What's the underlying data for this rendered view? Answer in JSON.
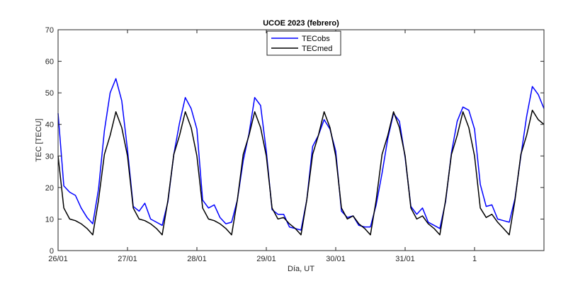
{
  "chart_data": {
    "type": "line",
    "title": "UCOE 2023 (febrero)",
    "xlabel": "Día, UT",
    "ylabel": "TEC [TECU]",
    "xlim": [
      0,
      7
    ],
    "ylim": [
      0,
      70
    ],
    "x_ticks": [
      {
        "value": 0,
        "label": "26/01"
      },
      {
        "value": 1,
        "label": "27/01"
      },
      {
        "value": 2,
        "label": "28/01"
      },
      {
        "value": 3,
        "label": "29/01"
      },
      {
        "value": 4,
        "label": "30/01"
      },
      {
        "value": 5,
        "label": "31/01"
      },
      {
        "value": 6,
        "label": "1"
      }
    ],
    "y_ticks": [
      0,
      10,
      20,
      30,
      40,
      50,
      60,
      70
    ],
    "grid": false,
    "legend": {
      "placement": "top-center"
    },
    "colors": {
      "TECobs": "#0000ff",
      "TECmed": "#000000"
    },
    "series": [
      {
        "name": "TECobs",
        "x": [
          0.0,
          0.083,
          0.167,
          0.25,
          0.333,
          0.417,
          0.5,
          0.583,
          0.667,
          0.75,
          0.833,
          0.917,
          1.0,
          1.083,
          1.167,
          1.25,
          1.333,
          1.417,
          1.5,
          1.583,
          1.667,
          1.75,
          1.833,
          1.917,
          2.0,
          2.083,
          2.167,
          2.25,
          2.333,
          2.417,
          2.5,
          2.583,
          2.667,
          2.75,
          2.833,
          2.917,
          3.0,
          3.083,
          3.167,
          3.25,
          3.333,
          3.417,
          3.5,
          3.583,
          3.667,
          3.75,
          3.833,
          3.917,
          4.0,
          4.083,
          4.167,
          4.25,
          4.333,
          4.417,
          4.5,
          4.583,
          4.667,
          4.75,
          4.833,
          4.917,
          5.0,
          5.083,
          5.167,
          5.25,
          5.333,
          5.417,
          5.5,
          5.583,
          5.667,
          5.75,
          5.833,
          5.917,
          6.0,
          6.083,
          6.167,
          6.25,
          6.333,
          6.417,
          6.5,
          6.583,
          6.667,
          6.75,
          6.833,
          6.917,
          7.0
        ],
        "values": [
          43.5,
          20.5,
          18.5,
          17.5,
          13.5,
          10.5,
          8.5,
          19.5,
          38.0,
          50.0,
          54.5,
          47.5,
          32.0,
          14.0,
          12.5,
          15.0,
          10.0,
          9.0,
          8.0,
          15.5,
          30.5,
          40.5,
          48.5,
          45.0,
          38.5,
          16.0,
          13.5,
          14.5,
          10.5,
          8.5,
          9.0,
          16.0,
          28.5,
          37.0,
          48.5,
          46.0,
          31.5,
          13.0,
          11.5,
          11.5,
          7.5,
          7.0,
          6.5,
          16.0,
          33.0,
          36.5,
          41.5,
          38.5,
          31.5,
          12.5,
          10.5,
          11.0,
          8.0,
          7.5,
          7.5,
          14.5,
          24.5,
          35.5,
          43.5,
          41.0,
          29.5,
          14.0,
          11.5,
          13.5,
          9.0,
          8.0,
          7.0,
          15.5,
          31.0,
          41.0,
          45.5,
          44.5,
          38.5,
          21.0,
          14.0,
          14.5,
          10.0,
          9.5,
          9.0,
          16.5,
          30.0,
          42.5,
          52.0,
          49.5,
          45.0
        ]
      },
      {
        "name": "TECmed",
        "x": [
          0.0,
          0.083,
          0.167,
          0.25,
          0.333,
          0.417,
          0.5,
          0.583,
          0.667,
          0.75,
          0.833,
          0.917,
          1.0,
          1.083,
          1.167,
          1.25,
          1.333,
          1.417,
          1.5,
          1.583,
          1.667,
          1.75,
          1.833,
          1.917,
          2.0,
          2.083,
          2.167,
          2.25,
          2.333,
          2.417,
          2.5,
          2.583,
          2.667,
          2.75,
          2.833,
          2.917,
          3.0,
          3.083,
          3.167,
          3.25,
          3.333,
          3.417,
          3.5,
          3.583,
          3.667,
          3.75,
          3.833,
          3.917,
          4.0,
          4.083,
          4.167,
          4.25,
          4.333,
          4.417,
          4.5,
          4.583,
          4.667,
          4.75,
          4.833,
          4.917,
          5.0,
          5.083,
          5.167,
          5.25,
          5.333,
          5.417,
          5.5,
          5.583,
          5.667,
          5.75,
          5.833,
          5.917,
          6.0,
          6.083,
          6.167,
          6.25,
          6.333,
          6.417,
          6.5,
          6.583,
          6.667,
          6.75,
          6.833,
          6.917,
          7.0
        ],
        "values": [
          30.0,
          13.5,
          10.0,
          9.5,
          8.5,
          7.0,
          5.0,
          16.0,
          30.5,
          36.5,
          44.0,
          39.0,
          30.0,
          13.5,
          10.0,
          9.5,
          8.5,
          7.0,
          5.0,
          16.0,
          30.5,
          36.5,
          44.0,
          39.0,
          30.0,
          13.5,
          10.0,
          9.5,
          8.5,
          7.0,
          5.0,
          16.0,
          30.5,
          36.5,
          44.0,
          39.0,
          30.0,
          13.5,
          10.0,
          10.5,
          8.5,
          7.0,
          5.0,
          16.0,
          30.5,
          36.5,
          44.0,
          39.0,
          30.0,
          13.5,
          10.0,
          11.0,
          8.5,
          7.0,
          5.0,
          16.0,
          30.5,
          36.5,
          44.0,
          39.0,
          30.0,
          13.5,
          10.0,
          11.0,
          8.5,
          7.0,
          5.0,
          16.0,
          30.5,
          36.5,
          44.0,
          39.0,
          30.0,
          13.5,
          10.5,
          11.5,
          9.0,
          7.0,
          5.0,
          16.0,
          30.5,
          36.5,
          44.5,
          41.5,
          40.0
        ]
      }
    ]
  }
}
